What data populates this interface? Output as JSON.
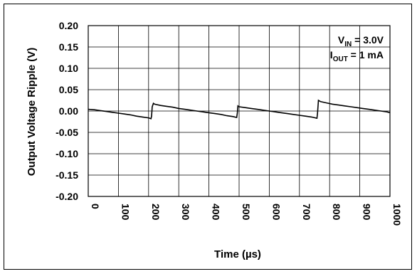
{
  "chart_data": {
    "type": "line",
    "xlabel": "Time (µs)",
    "ylabel": "Output Voltage Ripple (V)",
    "xlim": [
      0,
      1000
    ],
    "ylim": [
      -0.2,
      0.2
    ],
    "x_ticks": [
      "0",
      "100",
      "200",
      "300",
      "400",
      "500",
      "600",
      "700",
      "800",
      "900",
      "1000"
    ],
    "y_ticks": [
      "0.20",
      "0.15",
      "0.10",
      "0.05",
      "0.00",
      "-0.05",
      "-0.10",
      "-0.15",
      "-0.20"
    ],
    "grid": true,
    "annotation": {
      "line1": {
        "main": "V",
        "sub": "IN",
        "rest": " = 3.0V"
      },
      "line2": {
        "main": "I",
        "sub": "OUT",
        "rest": " = 1 mA"
      }
    },
    "series": [
      {
        "color": "#000000",
        "x": [
          0,
          20,
          40,
          60,
          80,
          100,
          120,
          140,
          160,
          180,
          200,
          208,
          210,
          212,
          216,
          220,
          240,
          260,
          280,
          300,
          320,
          340,
          360,
          380,
          400,
          420,
          440,
          460,
          480,
          492,
          494,
          496,
          500,
          520,
          540,
          560,
          580,
          600,
          620,
          640,
          660,
          680,
          700,
          720,
          740,
          758,
          760,
          763,
          770,
          790,
          810,
          830,
          850,
          870,
          890,
          910,
          930,
          950,
          970,
          990,
          1000
        ],
        "y": [
          0.004,
          0.003,
          0.001,
          -0.001,
          -0.003,
          -0.005,
          -0.007,
          -0.009,
          -0.012,
          -0.014,
          -0.016,
          -0.018,
          -0.012,
          0.01,
          0.018,
          0.016,
          0.013,
          0.011,
          0.009,
          0.006,
          0.004,
          0.002,
          0.0,
          -0.002,
          -0.004,
          -0.006,
          -0.008,
          -0.011,
          -0.013,
          -0.015,
          -0.005,
          0.012,
          0.01,
          0.008,
          0.006,
          0.004,
          0.002,
          0.0,
          -0.002,
          -0.004,
          -0.006,
          -0.008,
          -0.01,
          -0.012,
          -0.014,
          -0.017,
          -0.005,
          0.025,
          0.022,
          0.019,
          0.016,
          0.014,
          0.012,
          0.01,
          0.008,
          0.006,
          0.004,
          0.002,
          0.0,
          -0.002,
          -0.004
        ]
      }
    ]
  }
}
